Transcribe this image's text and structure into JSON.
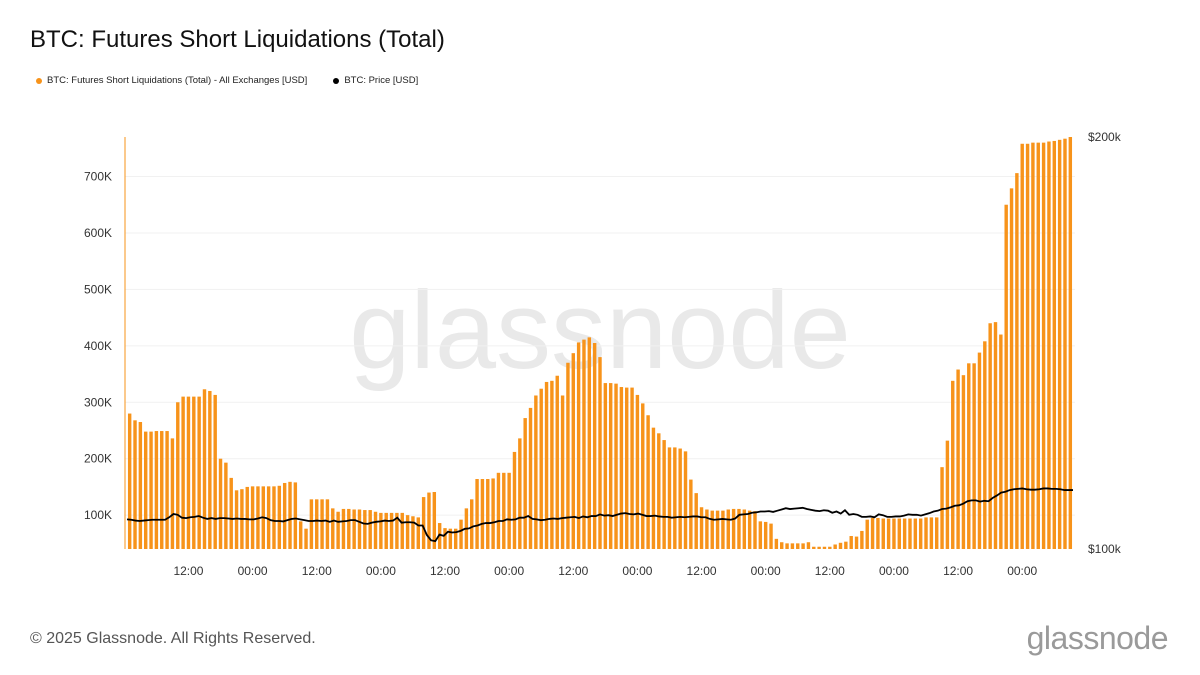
{
  "title": "BTC: Futures Short Liquidations (Total)",
  "legend": [
    {
      "label": "BTC: Futures Short Liquidations (Total) - All Exchanges [USD]",
      "color": "#f7931a"
    },
    {
      "label": "BTC: Price [USD]",
      "color": "#000000"
    }
  ],
  "watermark": "glassnode",
  "footer": "© 2025 Glassnode. All Rights Reserved.",
  "brand": "glassnode",
  "chart_data": {
    "type": "bar",
    "title": "BTC: Futures Short Liquidations (Total)",
    "bar_color": "#f7931a",
    "line_color": "#000000",
    "ylim": [
      40000,
      770000
    ],
    "y_ticks": [
      100000,
      200000,
      300000,
      400000,
      500000,
      600000,
      700000
    ],
    "y_tick_labels": [
      "100K",
      "200K",
      "300K",
      "400K",
      "500K",
      "600K",
      "700K"
    ],
    "y2lim": [
      100000,
      200000
    ],
    "y2_tick_labels": [
      "$100k",
      "$200k"
    ],
    "x_tick_labels": [
      "12:00",
      "00:00",
      "12:00",
      "00:00",
      "12:00",
      "00:00",
      "12:00",
      "00:00",
      "12:00",
      "00:00",
      "12:00",
      "00:00",
      "12:00",
      "00:00"
    ],
    "x_tick_indices": [
      11,
      23,
      35,
      47,
      59,
      71,
      83,
      95,
      107,
      119,
      131,
      143,
      155,
      167
    ],
    "series": [
      {
        "name": "BTC: Futures Short Liquidations (Total) - All Exchanges [USD]",
        "values": [
          280000,
          268000,
          265000,
          248000,
          248000,
          249000,
          249000,
          249000,
          236000,
          300000,
          310000,
          310000,
          310000,
          310000,
          323000,
          320000,
          313000,
          200000,
          193000,
          166000,
          144000,
          146000,
          150000,
          151000,
          151000,
          151000,
          151000,
          151000,
          152000,
          157000,
          159000,
          158000,
          89000,
          76000,
          128000,
          128000,
          128000,
          128000,
          112000,
          106000,
          111000,
          111000,
          110000,
          110000,
          109000,
          109000,
          106000,
          104000,
          104000,
          104000,
          104000,
          104000,
          100000,
          98000,
          96000,
          132000,
          140000,
          141000,
          86000,
          77000,
          76000,
          76000,
          92000,
          112000,
          128000,
          164000,
          164000,
          164000,
          165000,
          175000,
          175000,
          175000,
          212000,
          236000,
          272000,
          290000,
          312000,
          324000,
          336000,
          338000,
          347000,
          312000,
          370000,
          387000,
          406000,
          411000,
          415000,
          405000,
          380000,
          334000,
          334000,
          333000,
          327000,
          326000,
          326000,
          313000,
          298000,
          277000,
          255000,
          245000,
          233000,
          220000,
          220000,
          218000,
          213000,
          163000,
          139000,
          114000,
          110000,
          108000,
          108000,
          108000,
          110000,
          111000,
          111000,
          110000,
          108000,
          107000,
          89000,
          88000,
          85000,
          58000,
          52000,
          50000,
          50000,
          50000,
          50000,
          52000,
          44000,
          44000,
          44000,
          44000,
          48000,
          51000,
          53000,
          63000,
          62000,
          72000,
          92000,
          95000,
          95000,
          94000,
          94000,
          94000,
          94000,
          94000,
          94000,
          94000,
          94000,
          96000,
          96000,
          96000,
          185000,
          232000,
          338000,
          358000,
          348000,
          369000,
          369000,
          388000,
          408000,
          440000,
          442000,
          420000,
          650000,
          679000,
          706000,
          758000,
          758000,
          760000,
          760000,
          760000,
          762000,
          763000,
          765000,
          767000,
          770000
        ]
      },
      {
        "name": "BTC: Price [USD]",
        "values": [
          107200,
          107100,
          106900,
          106800,
          106900,
          107000,
          107100,
          107100,
          107100,
          107100,
          107700,
          108500,
          108300,
          107600,
          107500,
          107700,
          107800,
          108000,
          107600,
          107300,
          107500,
          107300,
          107500,
          107500,
          107400,
          107300,
          107400,
          107300,
          107300,
          107200,
          107200,
          107400,
          107700,
          107500,
          107000,
          106800,
          106800,
          106700,
          107000,
          107300,
          107400,
          107200,
          107000,
          106800,
          106800,
          106900,
          106800,
          106900,
          106600,
          106900,
          106600,
          106700,
          106800,
          107000,
          107000,
          106600,
          106200,
          106100,
          106400,
          106600,
          106700,
          106900,
          106800,
          106900,
          107600,
          106400,
          106500,
          106500,
          106400,
          105700,
          105700,
          103400,
          102100,
          101900,
          103500,
          103200,
          104200,
          104000,
          104100,
          104400,
          104900,
          105000,
          105500,
          105700,
          106100,
          106300,
          106300,
          106500,
          106800,
          106800,
          107200,
          107100,
          107200,
          107600,
          107600,
          108000,
          107300,
          107200,
          107000,
          107100,
          107300,
          107400,
          107300,
          107500,
          107600,
          107700,
          107800,
          107500,
          107900,
          107700,
          108000,
          108000,
          108400,
          108100,
          108200,
          108000,
          108300,
          108600,
          108700,
          108500,
          108400,
          108600,
          108300,
          108000,
          108000,
          108100,
          107900,
          107800,
          107800,
          107600,
          107700,
          107800,
          107700,
          107800,
          107900,
          107900,
          107700,
          107700,
          107300,
          107100,
          107200,
          107300,
          107200,
          107100,
          107400,
          108300,
          108400,
          108500,
          108800,
          108900,
          109100,
          109100,
          109200,
          109000,
          109300,
          109600,
          109900,
          109700,
          109800,
          109900,
          110000,
          109700,
          109500,
          109300,
          109200,
          109400,
          109300,
          108800,
          109100,
          108600,
          109400,
          108300,
          108500,
          108300,
          107800,
          107800,
          107900,
          107700,
          108400,
          108200,
          107800,
          107800,
          107900,
          107900,
          108100,
          108400,
          108300,
          108300,
          108100,
          108400,
          108700,
          109100,
          109300,
          109700,
          109800,
          110100,
          110500,
          110600,
          111000,
          111600,
          111800,
          111800,
          111500,
          111700,
          111600,
          112400,
          113000,
          113700,
          113900,
          114300,
          114500,
          114600,
          114700,
          114500,
          114400,
          114400,
          114500,
          114700,
          114700,
          114600,
          114600,
          114500,
          114300,
          114300,
          114300
        ]
      }
    ]
  }
}
